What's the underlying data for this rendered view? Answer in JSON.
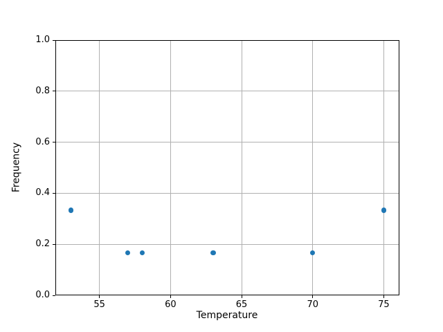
{
  "chart_data": {
    "type": "scatter",
    "title": "",
    "xlabel": "Temperature",
    "ylabel": "Frequency",
    "x": [
      53,
      57,
      58,
      63,
      70,
      75
    ],
    "y": [
      0.333,
      0.167,
      0.167,
      0.167,
      0.167,
      0.333
    ],
    "xlim": [
      51.9,
      76.1
    ],
    "ylim": [
      0.0,
      1.0
    ],
    "xticks": [
      55,
      60,
      65,
      70,
      75
    ],
    "xtick_labels": [
      "55",
      "60",
      "65",
      "70",
      "75"
    ],
    "yticks": [
      0.0,
      0.2,
      0.4,
      0.6,
      0.8,
      1.0
    ],
    "ytick_labels": [
      "0.0",
      "0.2",
      "0.4",
      "0.6",
      "0.8",
      "1.0"
    ],
    "grid": true,
    "legend": "none",
    "marker_color": "#1f77b4",
    "grid_color": "#b0b0b0",
    "spine_color": "#000000",
    "text_color": "#000000"
  }
}
